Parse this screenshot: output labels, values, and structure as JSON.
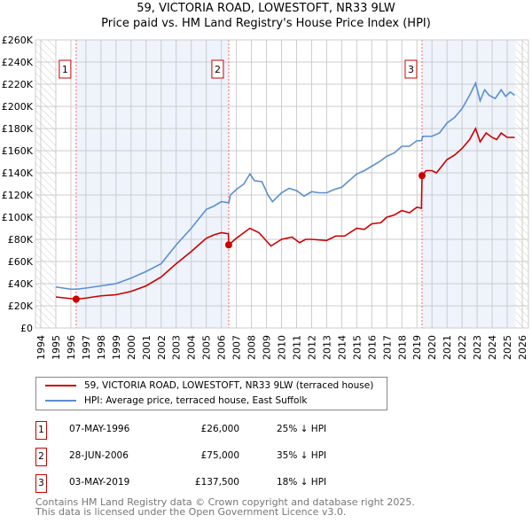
{
  "chart_data": {
    "type": "line",
    "title": "59, VICTORIA ROAD, LOWESTOFT, NR33 9LW",
    "subtitle": "Price paid vs. HM Land Registry's House Price Index (HPI)",
    "xlim": [
      1994,
      2026
    ],
    "ylim": [
      0,
      260000
    ],
    "x_ticks": [
      "1994",
      "1995",
      "1996",
      "1997",
      "1998",
      "1999",
      "2000",
      "2001",
      "2002",
      "2003",
      "2004",
      "2005",
      "2006",
      "2007",
      "2008",
      "2009",
      "2010",
      "2011",
      "2012",
      "2013",
      "2014",
      "2015",
      "2016",
      "2017",
      "2018",
      "2019",
      "2020",
      "2021",
      "2022",
      "2023",
      "2024",
      "2025",
      "2026"
    ],
    "y_ticks": [
      "£0",
      "£20K",
      "£40K",
      "£60K",
      "£80K",
      "£100K",
      "£120K",
      "£140K",
      "£160K",
      "£180K",
      "£200K",
      "£220K",
      "£240K",
      "£260K"
    ],
    "grid": true,
    "series": [
      {
        "name": "59, VICTORIA ROAD, LOWESTOFT, NR33 9LW (terraced house)",
        "color": "#cc0000",
        "points": [
          [
            1995,
            28
          ],
          [
            1996.35,
            26
          ],
          [
            1997,
            27
          ],
          [
            1998,
            29
          ],
          [
            1999,
            30
          ],
          [
            2000,
            33
          ],
          [
            2001,
            38
          ],
          [
            2002,
            46
          ],
          [
            2003,
            58
          ],
          [
            2004,
            69
          ],
          [
            2005,
            81
          ],
          [
            2005.5,
            84
          ],
          [
            2006,
            86
          ],
          [
            2006.47,
            85
          ],
          [
            2006.49,
            75
          ],
          [
            2007,
            81
          ],
          [
            2007.9,
            90
          ],
          [
            2008.5,
            86
          ],
          [
            2009.3,
            74
          ],
          [
            2010,
            80
          ],
          [
            2010.7,
            82
          ],
          [
            2011.2,
            77
          ],
          [
            2011.6,
            80
          ],
          [
            2012,
            80
          ],
          [
            2013,
            79
          ],
          [
            2013.6,
            83
          ],
          [
            2014.2,
            83
          ],
          [
            2015,
            90
          ],
          [
            2015.5,
            89
          ],
          [
            2016,
            94
          ],
          [
            2016.6,
            95
          ],
          [
            2017,
            100
          ],
          [
            2017.5,
            102
          ],
          [
            2018,
            106
          ],
          [
            2018.5,
            104
          ],
          [
            2019,
            109
          ],
          [
            2019.3,
            108
          ],
          [
            2019.34,
            137.5
          ],
          [
            2019.6,
            142
          ],
          [
            2020,
            142
          ],
          [
            2020.3,
            140
          ],
          [
            2021,
            152
          ],
          [
            2021.5,
            156
          ],
          [
            2022,
            162
          ],
          [
            2022.5,
            170
          ],
          [
            2022.9,
            180
          ],
          [
            2023.2,
            168
          ],
          [
            2023.6,
            176
          ],
          [
            2024,
            172
          ],
          [
            2024.3,
            170
          ],
          [
            2024.6,
            176
          ],
          [
            2025,
            172
          ],
          [
            2025.5,
            172
          ]
        ]
      },
      {
        "name": "HPI: Average price, terraced house, East Suffolk",
        "color": "#5b8fd0",
        "points": [
          [
            1995,
            37
          ],
          [
            1996,
            35
          ],
          [
            1996.35,
            35
          ],
          [
            1997,
            36
          ],
          [
            1998,
            38
          ],
          [
            1999,
            40
          ],
          [
            2000,
            45
          ],
          [
            2001,
            51
          ],
          [
            2002,
            58
          ],
          [
            2003,
            75
          ],
          [
            2004,
            90
          ],
          [
            2005,
            107
          ],
          [
            2005.5,
            110
          ],
          [
            2006,
            114
          ],
          [
            2006.5,
            113
          ],
          [
            2006.6,
            120
          ],
          [
            2007,
            125
          ],
          [
            2007.5,
            130
          ],
          [
            2007.9,
            139
          ],
          [
            2008.2,
            133
          ],
          [
            2008.7,
            132
          ],
          [
            2009.1,
            120
          ],
          [
            2009.4,
            114
          ],
          [
            2010,
            122
          ],
          [
            2010.5,
            126
          ],
          [
            2011,
            124
          ],
          [
            2011.5,
            119
          ],
          [
            2012,
            123
          ],
          [
            2012.5,
            122
          ],
          [
            2013,
            122
          ],
          [
            2013.5,
            125
          ],
          [
            2014,
            127
          ],
          [
            2014.5,
            133
          ],
          [
            2015,
            139
          ],
          [
            2015.5,
            142
          ],
          [
            2016,
            146
          ],
          [
            2016.5,
            150
          ],
          [
            2017,
            155
          ],
          [
            2017.5,
            158
          ],
          [
            2018,
            164
          ],
          [
            2018.5,
            164
          ],
          [
            2019,
            169
          ],
          [
            2019.3,
            169
          ],
          [
            2019.4,
            173
          ],
          [
            2020,
            173
          ],
          [
            2020.5,
            176
          ],
          [
            2021,
            185
          ],
          [
            2021.5,
            190
          ],
          [
            2022,
            198
          ],
          [
            2022.5,
            210
          ],
          [
            2022.9,
            221
          ],
          [
            2023.2,
            205
          ],
          [
            2023.5,
            215
          ],
          [
            2023.8,
            210
          ],
          [
            2024.2,
            207
          ],
          [
            2024.6,
            215
          ],
          [
            2024.9,
            209
          ],
          [
            2025.2,
            213
          ],
          [
            2025.5,
            210
          ]
        ]
      }
    ],
    "sales": [
      {
        "label": "1",
        "date": "07-MAY-1996",
        "x": 1996.35,
        "price": "£26,000",
        "value": 26,
        "hpi": "25% ↓ HPI"
      },
      {
        "label": "2",
        "date": "28-JUN-2006",
        "x": 2006.49,
        "price": "£75,000",
        "value": 75,
        "hpi": "35% ↓ HPI"
      },
      {
        "label": "3",
        "date": "03-MAY-2019",
        "x": 2019.34,
        "price": "£137,500",
        "value": 137.5,
        "hpi": "18% ↓ HPI"
      }
    ],
    "value_units": "thousand GBP"
  },
  "footer": [
    "Contains HM Land Registry data © Crown copyright and database right 2025.",
    "This data is licensed under the Open Government Licence v3.0."
  ]
}
